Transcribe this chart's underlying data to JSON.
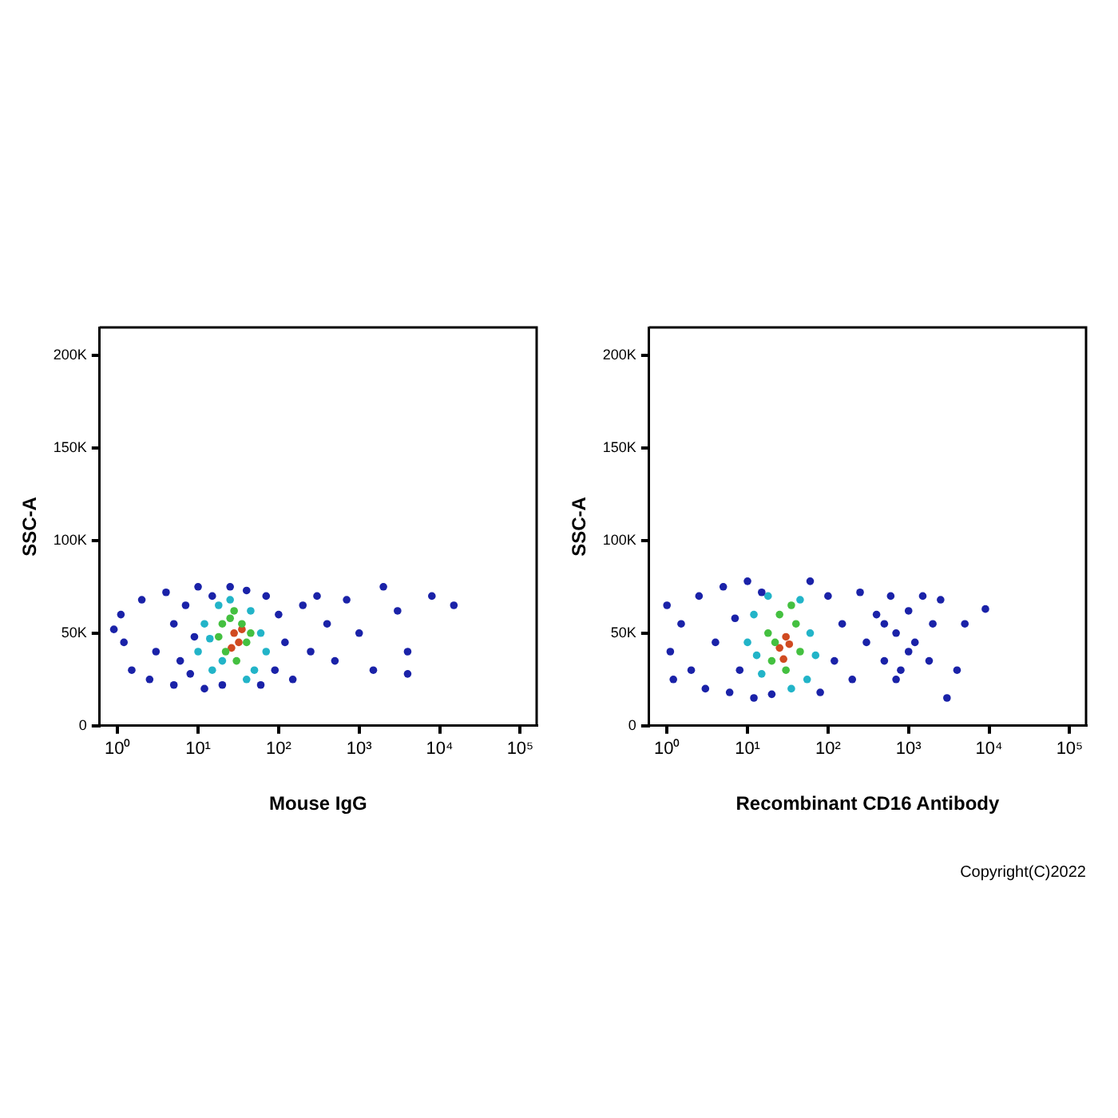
{
  "chart_data": [
    {
      "type": "scatter",
      "xlabel": "Mouse IgG",
      "ylabel": "SSC-A",
      "log": "x",
      "grid": false,
      "legend": false,
      "marker": "circle",
      "xlim": [
        0.6,
        160000
      ],
      "xticks": [
        {
          "value": 1,
          "label": "10⁰"
        },
        {
          "value": 10,
          "label": "10¹"
        },
        {
          "value": 100,
          "label": "10²"
        },
        {
          "value": 1000,
          "label": "10³"
        },
        {
          "value": 10000,
          "label": "10⁴"
        },
        {
          "value": 100000,
          "label": "10⁵"
        }
      ],
      "ylim": [
        0,
        215000
      ],
      "yticks": [
        {
          "value": 0,
          "label": "0"
        },
        {
          "value": 50000,
          "label": "50K"
        },
        {
          "value": 100000,
          "label": "100K"
        },
        {
          "value": 150000,
          "label": "150K"
        },
        {
          "value": 200000,
          "label": "200K"
        }
      ],
      "series": [
        {
          "color": "#1a22a8",
          "x": [
            1.1,
            1.2,
            1.5,
            0.9,
            2,
            2.5,
            3,
            4,
            5,
            5,
            6,
            7,
            8,
            9,
            10,
            12,
            15,
            20,
            25,
            40,
            60,
            70,
            90,
            100,
            120,
            150,
            200,
            250,
            300,
            400,
            500,
            700,
            1000,
            1500,
            2000,
            3000,
            4000,
            8000,
            15000,
            4000
          ],
          "values": [
            60000,
            45000,
            30000,
            52000,
            68000,
            25000,
            40000,
            72000,
            22000,
            55000,
            35000,
            65000,
            28000,
            48000,
            75000,
            20000,
            70000,
            22000,
            75000,
            73000,
            22000,
            70000,
            30000,
            60000,
            45000,
            25000,
            65000,
            40000,
            70000,
            55000,
            35000,
            68000,
            50000,
            30000,
            75000,
            62000,
            28000,
            70000,
            65000,
            40000
          ]
        },
        {
          "color": "#22b4c8",
          "x": [
            10,
            12,
            15,
            18,
            20,
            45,
            50,
            60,
            70,
            40,
            14,
            25
          ],
          "values": [
            40000,
            55000,
            30000,
            65000,
            35000,
            62000,
            30000,
            50000,
            40000,
            25000,
            47000,
            68000
          ]
        },
        {
          "color": "#44c040",
          "x": [
            18,
            22,
            25,
            30,
            35,
            40,
            28,
            45,
            20
          ],
          "values": [
            48000,
            40000,
            58000,
            35000,
            55000,
            45000,
            62000,
            50000,
            55000
          ]
        },
        {
          "color": "#d04a20",
          "x": [
            28,
            32,
            26,
            35
          ],
          "values": [
            50000,
            45000,
            42000,
            52000
          ]
        }
      ]
    },
    {
      "type": "scatter",
      "xlabel": "Recombinant CD16 Antibody",
      "ylabel": "SSC-A",
      "log": "x",
      "grid": false,
      "legend": false,
      "marker": "circle",
      "annotations": [
        "Copyright(C)2022"
      ],
      "xlim": [
        0.6,
        160000
      ],
      "xticks": [
        {
          "value": 1,
          "label": "10⁰"
        },
        {
          "value": 10,
          "label": "10¹"
        },
        {
          "value": 100,
          "label": "10²"
        },
        {
          "value": 1000,
          "label": "10³"
        },
        {
          "value": 10000,
          "label": "10⁴"
        },
        {
          "value": 100000,
          "label": "10⁵"
        }
      ],
      "ylim": [
        0,
        215000
      ],
      "yticks": [
        {
          "value": 0,
          "label": "0"
        },
        {
          "value": 50000,
          "label": "50K"
        },
        {
          "value": 100000,
          "label": "100K"
        },
        {
          "value": 150000,
          "label": "150K"
        },
        {
          "value": 200000,
          "label": "200K"
        }
      ],
      "series": [
        {
          "color": "#1a22a8",
          "x": [
            1,
            1.1,
            1.2,
            1.5,
            2,
            2.5,
            3,
            4,
            5,
            6,
            7,
            8,
            10,
            12,
            15,
            20,
            60,
            80,
            100,
            120,
            150,
            200,
            250,
            300,
            400,
            500,
            600,
            700,
            800,
            1000,
            1200,
            1500,
            1800,
            2000,
            2500,
            3000,
            5000,
            9000,
            4000,
            500,
            1000,
            700
          ],
          "values": [
            65000,
            40000,
            25000,
            55000,
            30000,
            70000,
            20000,
            45000,
            75000,
            18000,
            58000,
            30000,
            78000,
            15000,
            72000,
            17000,
            78000,
            18000,
            70000,
            35000,
            55000,
            25000,
            72000,
            45000,
            60000,
            35000,
            70000,
            50000,
            30000,
            62000,
            45000,
            70000,
            35000,
            55000,
            68000,
            15000,
            55000,
            63000,
            30000,
            55000,
            40000,
            25000
          ]
        },
        {
          "color": "#22b4c8",
          "x": [
            10,
            12,
            15,
            18,
            45,
            55,
            60,
            70,
            35,
            13
          ],
          "values": [
            45000,
            60000,
            28000,
            70000,
            68000,
            25000,
            50000,
            38000,
            20000,
            38000
          ]
        },
        {
          "color": "#44c040",
          "x": [
            18,
            20,
            25,
            30,
            40,
            45,
            22,
            35
          ],
          "values": [
            50000,
            35000,
            60000,
            30000,
            55000,
            40000,
            45000,
            65000
          ]
        },
        {
          "color": "#d04a20",
          "x": [
            25,
            30,
            28,
            33
          ],
          "values": [
            42000,
            48000,
            36000,
            44000
          ]
        }
      ]
    }
  ]
}
